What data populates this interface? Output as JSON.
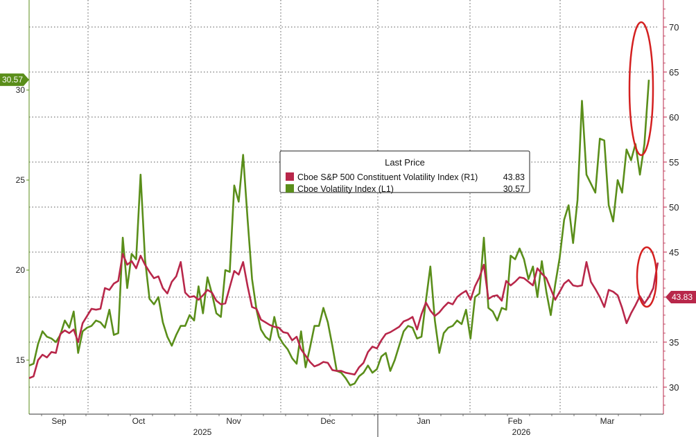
{
  "chart_data": {
    "type": "line",
    "legend": {
      "title": "Last Price",
      "placement": "center",
      "entries": [
        {
          "label": "Cboe S&P 500 Constituent Volatility Index  (R1)",
          "value": "43.83",
          "color": "#b8274a"
        },
        {
          "label": "Cboe Volatility Index  (L1)",
          "value": "30.57",
          "color": "#5a8e1a"
        }
      ]
    },
    "x_month_labels": [
      "Sep",
      "Oct",
      "Nov",
      "Dec",
      "Jan",
      "Feb",
      "Mar"
    ],
    "x_year_labels": [
      "2025",
      "2026"
    ],
    "left_axis": {
      "ticks": [
        "15",
        "20",
        "25",
        "30"
      ],
      "range": [
        12.0,
        35.0
      ]
    },
    "right_axis": {
      "ticks": [
        "30",
        "35",
        "40",
        "45",
        "50",
        "55",
        "60",
        "65",
        "70"
      ],
      "range": [
        27.0,
        73.0
      ]
    },
    "last_value_tags": {
      "left": "30.57",
      "right": "43.83"
    },
    "grid": true,
    "series": [
      {
        "name": "Cboe Volatility Index  (L1)",
        "axis": "left",
        "color": "#5a8e1a",
        "values": [
          14.7,
          14.8,
          15.9,
          16.6,
          16.3,
          16.2,
          16.0,
          16.4,
          17.2,
          16.8,
          17.7,
          15.4,
          16.6,
          16.8,
          16.9,
          17.2,
          17.1,
          16.8,
          17.8,
          16.4,
          16.5,
          21.8,
          19.0,
          20.9,
          20.6,
          25.3,
          20.6,
          18.4,
          18.1,
          18.5,
          17.1,
          16.3,
          15.8,
          16.4,
          16.9,
          16.9,
          17.5,
          17.2,
          19.1,
          17.6,
          19.6,
          18.7,
          17.6,
          17.4,
          20.0,
          19.9,
          24.7,
          23.8,
          26.4,
          22.8,
          19.5,
          17.8,
          16.7,
          16.3,
          16.1,
          17.4,
          16.3,
          15.9,
          15.6,
          15.1,
          14.8,
          16.6,
          14.6,
          15.7,
          16.9,
          16.9,
          17.9,
          17.1,
          15.8,
          14.4,
          14.3,
          14.0,
          13.6,
          13.7,
          14.1,
          14.3,
          14.7,
          14.3,
          14.5,
          15.2,
          15.4,
          14.4,
          15.0,
          15.8,
          16.6,
          16.9,
          16.8,
          16.2,
          16.3,
          18.3,
          20.2,
          17.2,
          15.4,
          16.5,
          16.8,
          16.9,
          17.2,
          17.0,
          17.8,
          16.2,
          18.5,
          18.7,
          21.8,
          17.9,
          17.7,
          17.2,
          17.9,
          17.8,
          20.8,
          20.6,
          21.2,
          20.6,
          19.5,
          20.2,
          18.5,
          20.5,
          18.8,
          17.5,
          19.2,
          20.7,
          22.8,
          23.6,
          21.5,
          23.9,
          29.4,
          25.3,
          24.8,
          24.3,
          27.3,
          27.2,
          23.6,
          22.7,
          25.0,
          24.3,
          26.7,
          26.1,
          27.0,
          25.3,
          27.0,
          30.57
        ]
      },
      {
        "name": "Cboe S&P 500 Constituent Volatility Index  (R1)",
        "axis": "right",
        "color": "#b8274a",
        "values": [
          31.0,
          31.2,
          33.0,
          33.6,
          33.3,
          33.9,
          33.8,
          35.9,
          36.3,
          36.0,
          36.4,
          35.0,
          37.1,
          37.9,
          38.7,
          38.6,
          38.7,
          41.0,
          40.8,
          41.5,
          41.8,
          44.8,
          43.6,
          44.0,
          43.2,
          44.6,
          43.6,
          42.8,
          42.1,
          42.3,
          41.0,
          40.4,
          41.7,
          42.3,
          43.9,
          40.5,
          40.0,
          40.1,
          39.7,
          40.2,
          40.8,
          40.5,
          39.6,
          39.2,
          39.3,
          41.1,
          42.9,
          42.5,
          43.9,
          41.2,
          38.9,
          38.7,
          37.5,
          37.2,
          36.9,
          36.7,
          36.6,
          36.1,
          36.0,
          35.2,
          35.6,
          34.2,
          33.5,
          32.8,
          32.3,
          32.5,
          32.8,
          32.7,
          31.9,
          31.8,
          31.8,
          31.6,
          31.5,
          31.4,
          32.2,
          32.7,
          33.9,
          34.5,
          34.3,
          35.2,
          35.9,
          36.1,
          36.4,
          36.7,
          37.3,
          37.5,
          37.8,
          36.4,
          38.1,
          39.4,
          38.5,
          37.9,
          38.3,
          38.9,
          39.4,
          39.2,
          40.0,
          40.4,
          40.7,
          39.7,
          41.2,
          42.2,
          43.6,
          39.8,
          40.1,
          40.2,
          39.6,
          41.8,
          41.3,
          41.7,
          42.2,
          42.1,
          41.7,
          41.3,
          43.2,
          42.6,
          42.1,
          40.9,
          39.7,
          40.6,
          41.5,
          41.9,
          41.3,
          41.2,
          41.3,
          43.9,
          41.7,
          40.9,
          40.0,
          38.9,
          40.8,
          40.6,
          40.2,
          38.8,
          37.1,
          38.2,
          39.1,
          40.1,
          39.3,
          40.0,
          41.0,
          43.83
        ]
      }
    ]
  }
}
